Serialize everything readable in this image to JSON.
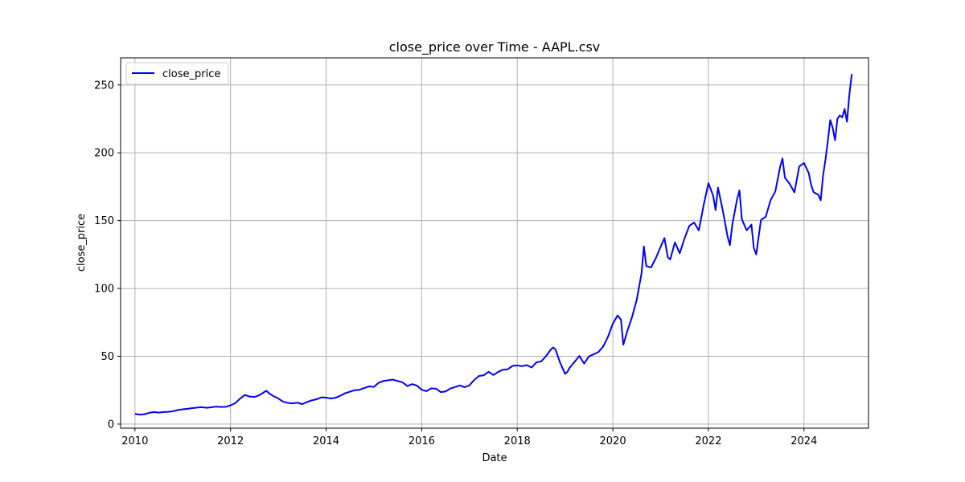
{
  "chart_data": {
    "type": "line",
    "title": "close_price over Time - AAPL.csv",
    "xlabel": "Date",
    "ylabel": "close_price",
    "xlim": [
      2009.7,
      2025.35
    ],
    "ylim": [
      -3,
      270
    ],
    "x_ticks": [
      2010,
      2012,
      2014,
      2016,
      2018,
      2020,
      2022,
      2024
    ],
    "x_tick_labels": [
      "2010",
      "2012",
      "2014",
      "2016",
      "2018",
      "2020",
      "2022",
      "2024"
    ],
    "y_ticks": [
      0,
      50,
      100,
      150,
      200,
      250
    ],
    "y_tick_labels": [
      "0",
      "50",
      "100",
      "150",
      "200",
      "250"
    ],
    "grid": true,
    "legend": {
      "position": "top-left",
      "entries": [
        "close_price"
      ]
    },
    "series": [
      {
        "name": "close_price",
        "color": "#0000ff",
        "points": [
          [
            2010.0,
            7.6
          ],
          [
            2010.1,
            7.0
          ],
          [
            2010.2,
            7.3
          ],
          [
            2010.3,
            8.3
          ],
          [
            2010.4,
            8.9
          ],
          [
            2010.5,
            8.5
          ],
          [
            2010.6,
            8.9
          ],
          [
            2010.7,
            9.1
          ],
          [
            2010.8,
            9.5
          ],
          [
            2010.9,
            10.4
          ],
          [
            2011.0,
            10.9
          ],
          [
            2011.1,
            11.3
          ],
          [
            2011.2,
            11.8
          ],
          [
            2011.3,
            12.2
          ],
          [
            2011.4,
            12.5
          ],
          [
            2011.5,
            12.0
          ],
          [
            2011.6,
            12.4
          ],
          [
            2011.7,
            12.9
          ],
          [
            2011.8,
            12.6
          ],
          [
            2011.9,
            12.8
          ],
          [
            2012.0,
            13.8
          ],
          [
            2012.1,
            15.5
          ],
          [
            2012.2,
            18.8
          ],
          [
            2012.3,
            21.5
          ],
          [
            2012.4,
            20.3
          ],
          [
            2012.5,
            20.0
          ],
          [
            2012.6,
            21.3
          ],
          [
            2012.7,
            23.5
          ],
          [
            2012.75,
            24.6
          ],
          [
            2012.8,
            22.9
          ],
          [
            2012.9,
            20.6
          ],
          [
            2013.0,
            18.9
          ],
          [
            2013.1,
            16.5
          ],
          [
            2013.2,
            15.6
          ],
          [
            2013.3,
            15.3
          ],
          [
            2013.4,
            15.8
          ],
          [
            2013.5,
            14.7
          ],
          [
            2013.6,
            16.3
          ],
          [
            2013.7,
            17.5
          ],
          [
            2013.8,
            18.3
          ],
          [
            2013.9,
            19.7
          ],
          [
            2014.0,
            19.5
          ],
          [
            2014.1,
            18.9
          ],
          [
            2014.2,
            19.4
          ],
          [
            2014.3,
            21.0
          ],
          [
            2014.4,
            22.8
          ],
          [
            2014.5,
            23.9
          ],
          [
            2014.6,
            25.0
          ],
          [
            2014.7,
            25.3
          ],
          [
            2014.8,
            26.6
          ],
          [
            2014.9,
            27.8
          ],
          [
            2015.0,
            27.4
          ],
          [
            2015.1,
            30.5
          ],
          [
            2015.2,
            31.8
          ],
          [
            2015.3,
            32.3
          ],
          [
            2015.4,
            32.8
          ],
          [
            2015.5,
            31.7
          ],
          [
            2015.6,
            30.8
          ],
          [
            2015.7,
            28.0
          ],
          [
            2015.8,
            29.5
          ],
          [
            2015.9,
            28.4
          ],
          [
            2016.0,
            25.3
          ],
          [
            2016.1,
            24.3
          ],
          [
            2016.2,
            26.4
          ],
          [
            2016.3,
            26.1
          ],
          [
            2016.4,
            23.6
          ],
          [
            2016.5,
            24.1
          ],
          [
            2016.6,
            26.2
          ],
          [
            2016.7,
            27.3
          ],
          [
            2016.8,
            28.5
          ],
          [
            2016.9,
            27.2
          ],
          [
            2017.0,
            28.6
          ],
          [
            2017.1,
            32.6
          ],
          [
            2017.2,
            35.5
          ],
          [
            2017.3,
            36.0
          ],
          [
            2017.4,
            38.6
          ],
          [
            2017.5,
            36.2
          ],
          [
            2017.6,
            38.5
          ],
          [
            2017.7,
            40.1
          ],
          [
            2017.8,
            40.4
          ],
          [
            2017.9,
            42.9
          ],
          [
            2018.0,
            43.3
          ],
          [
            2018.1,
            42.7
          ],
          [
            2018.2,
            43.5
          ],
          [
            2018.3,
            41.7
          ],
          [
            2018.4,
            45.5
          ],
          [
            2018.5,
            46.2
          ],
          [
            2018.6,
            50.0
          ],
          [
            2018.7,
            54.8
          ],
          [
            2018.75,
            56.5
          ],
          [
            2018.8,
            55.0
          ],
          [
            2018.9,
            45.0
          ],
          [
            2019.0,
            37.1
          ],
          [
            2019.05,
            38.5
          ],
          [
            2019.1,
            41.8
          ],
          [
            2019.2,
            45.9
          ],
          [
            2019.3,
            50.2
          ],
          [
            2019.4,
            44.6
          ],
          [
            2019.5,
            49.9
          ],
          [
            2019.6,
            51.5
          ],
          [
            2019.7,
            53.2
          ],
          [
            2019.8,
            57.3
          ],
          [
            2019.9,
            64.5
          ],
          [
            2020.0,
            74.1
          ],
          [
            2020.1,
            80.1
          ],
          [
            2020.17,
            77.0
          ],
          [
            2020.22,
            58.5
          ],
          [
            2020.3,
            68.3
          ],
          [
            2020.4,
            78.7
          ],
          [
            2020.5,
            91.6
          ],
          [
            2020.6,
            111.0
          ],
          [
            2020.65,
            131.0
          ],
          [
            2020.7,
            116.5
          ],
          [
            2020.8,
            115.5
          ],
          [
            2020.9,
            122.4
          ],
          [
            2021.0,
            130.7
          ],
          [
            2021.08,
            137.1
          ],
          [
            2021.15,
            123.0
          ],
          [
            2021.2,
            121.4
          ],
          [
            2021.3,
            133.9
          ],
          [
            2021.4,
            125.9
          ],
          [
            2021.5,
            136.9
          ],
          [
            2021.6,
            146.1
          ],
          [
            2021.7,
            148.6
          ],
          [
            2021.8,
            142.8
          ],
          [
            2021.9,
            161.4
          ],
          [
            2022.0,
            177.6
          ],
          [
            2022.1,
            168.3
          ],
          [
            2022.15,
            157.8
          ],
          [
            2022.2,
            174.3
          ],
          [
            2022.3,
            157.7
          ],
          [
            2022.4,
            138.5
          ],
          [
            2022.45,
            131.9
          ],
          [
            2022.5,
            147.0
          ],
          [
            2022.6,
            165.8
          ],
          [
            2022.65,
            172.3
          ],
          [
            2022.7,
            151.0
          ],
          [
            2022.8,
            142.9
          ],
          [
            2022.9,
            147.0
          ],
          [
            2022.95,
            129.9
          ],
          [
            2023.0,
            125.1
          ],
          [
            2023.1,
            150.5
          ],
          [
            2023.2,
            152.9
          ],
          [
            2023.3,
            165.0
          ],
          [
            2023.4,
            171.5
          ],
          [
            2023.5,
            189.6
          ],
          [
            2023.55,
            195.8
          ],
          [
            2023.6,
            181.7
          ],
          [
            2023.7,
            177.1
          ],
          [
            2023.8,
            170.8
          ],
          [
            2023.9,
            189.9
          ],
          [
            2024.0,
            192.5
          ],
          [
            2024.1,
            185.0
          ],
          [
            2024.15,
            176.3
          ],
          [
            2024.2,
            171.0
          ],
          [
            2024.3,
            169.0
          ],
          [
            2024.35,
            165.0
          ],
          [
            2024.4,
            183.4
          ],
          [
            2024.45,
            195.1
          ],
          [
            2024.5,
            209.1
          ],
          [
            2024.55,
            224.2
          ],
          [
            2024.6,
            218.5
          ],
          [
            2024.65,
            209.3
          ],
          [
            2024.7,
            225.0
          ],
          [
            2024.75,
            227.6
          ],
          [
            2024.8,
            226.1
          ],
          [
            2024.85,
            232.3
          ],
          [
            2024.9,
            222.9
          ],
          [
            2024.95,
            243.1
          ],
          [
            2025.0,
            258.0
          ]
        ]
      }
    ]
  }
}
